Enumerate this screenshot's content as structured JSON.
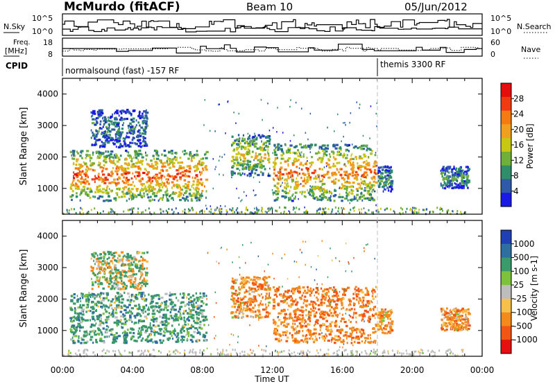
{
  "header": {
    "station": "McMurdo (fitACF)",
    "beam": "Beam 10",
    "date": "05/Jun/2012"
  },
  "status_panels": {
    "nsky_label": "N.Sky",
    "nsearch_label": "N.Search",
    "freq_label_1": "Freq.",
    "freq_label_2": "[MHz]",
    "nave_label": "Nave",
    "cpid_label": "CPID",
    "noise_ticks_left": [
      "10^5",
      "10^0"
    ],
    "noise_ticks_right": [
      "10^5",
      "10^0"
    ],
    "freq_ticks_left": [
      "18",
      "8"
    ],
    "nave_ticks_right": [
      "60",
      "0"
    ]
  },
  "cpid": {
    "segments": [
      {
        "label": "normalsound (fast) -157 RF",
        "start": "00:00",
        "end": "18:00"
      },
      {
        "label": "themis 3300 RF",
        "start": "18:00",
        "end": "24:00"
      }
    ]
  },
  "chart_data": [
    {
      "type": "heatmap",
      "title": "Power",
      "ylabel": "Slant Range [km]",
      "xlabel": "",
      "xlim": [
        0,
        24
      ],
      "ylim": [
        180,
        4500
      ],
      "yticks": [
        1000,
        2000,
        3000,
        4000
      ],
      "colorbar": {
        "label": "Power [dB]",
        "ticks": [
          4,
          8,
          12,
          16,
          20,
          24,
          28
        ],
        "colors": [
          "#1a1ae6",
          "#2e5aa8",
          "#2f8d6a",
          "#6fb03d",
          "#c7c714",
          "#f0a020",
          "#f47a12",
          "#ef3a12",
          "#e60d0d"
        ]
      },
      "echo_regions": [
        {
          "t0": 0.4,
          "t1": 8.2,
          "r0": 600,
          "r1": 2200,
          "level": 26
        },
        {
          "t0": 1.6,
          "t1": 4.8,
          "r0": 2300,
          "r1": 3500,
          "level": 8
        },
        {
          "t0": 9.6,
          "t1": 11.8,
          "r0": 1400,
          "r1": 2700,
          "level": 18
        },
        {
          "t0": 12.0,
          "t1": 17.9,
          "r0": 600,
          "r1": 2400,
          "level": 24
        },
        {
          "t0": 18.0,
          "t1": 18.8,
          "r0": 900,
          "r1": 1700,
          "level": 10
        },
        {
          "t0": 21.6,
          "t1": 23.2,
          "r0": 1000,
          "r1": 1700,
          "level": 10
        }
      ]
    },
    {
      "type": "heatmap",
      "title": "Velocity",
      "ylabel": "Slant Range [km]",
      "xlabel": "Time UT",
      "xlim": [
        0,
        24
      ],
      "ylim": [
        180,
        4500
      ],
      "yticks": [
        1000,
        2000,
        3000,
        4000
      ],
      "xticks": [
        "00:00",
        "04:00",
        "08:00",
        "12:00",
        "16:00",
        "20:00",
        "00:00"
      ],
      "colorbar": {
        "label": "Velocity [m s-1]",
        "ticks": [
          1000,
          500,
          100,
          25,
          -25,
          -100,
          -500,
          -1000
        ],
        "colors": [
          "#1f3fb5",
          "#2f6fa0",
          "#3a9a6a",
          "#7cc23d",
          "#bdbdbd",
          "#f7c04a",
          "#f58a1c",
          "#f25515",
          "#e61010"
        ]
      },
      "echo_regions": [
        {
          "t0": 0.4,
          "t1": 8.2,
          "r0": 600,
          "r1": 2200,
          "level": 300
        },
        {
          "t0": 1.6,
          "t1": 4.8,
          "r0": 2300,
          "r1": 3500,
          "level": 50
        },
        {
          "t0": 9.6,
          "t1": 11.8,
          "r0": 1400,
          "r1": 2700,
          "level": -300
        },
        {
          "t0": 12.0,
          "t1": 17.9,
          "r0": 600,
          "r1": 2400,
          "level": -400
        },
        {
          "t0": 18.0,
          "t1": 18.8,
          "r0": 900,
          "r1": 1700,
          "level": -200
        },
        {
          "t0": 21.6,
          "t1": 23.2,
          "r0": 1000,
          "r1": 1700,
          "level": -300
        }
      ]
    }
  ]
}
